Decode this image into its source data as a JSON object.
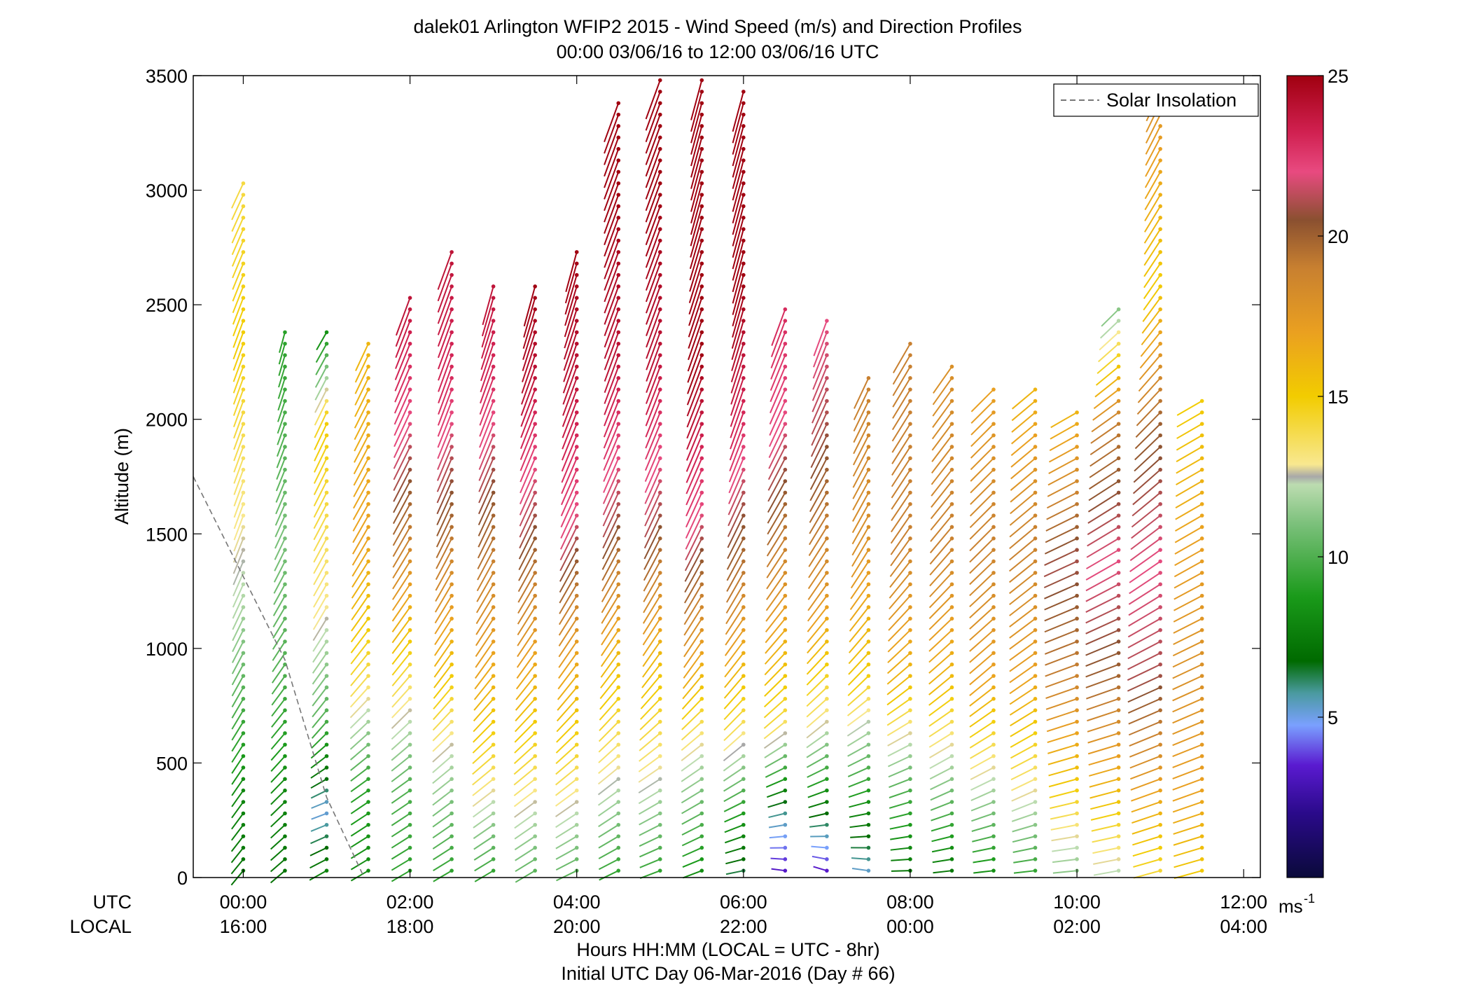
{
  "chart_data": {
    "type": "scatter",
    "title_line1": "dalek01 Arlington WFIP2 2015 - Wind Speed (m/s) and Direction Profiles",
    "title_line2": "00:00 03/06/16 to 12:00 03/06/16  UTC",
    "ylabel": "Altitude (m)",
    "ylim": [
      0,
      3500
    ],
    "yticks": [
      "0",
      "500",
      "1000",
      "1500",
      "2000",
      "2500",
      "3000",
      "3500"
    ],
    "xlim_hours": [
      -0.6,
      12.2
    ],
    "xticks_utc": [
      "00:00",
      "02:00",
      "04:00",
      "06:00",
      "08:00",
      "10:00",
      "12:00"
    ],
    "xticks_local": [
      "16:00",
      "18:00",
      "20:00",
      "22:00",
      "00:00",
      "02:00",
      "04:00"
    ],
    "xtick_hours": [
      0,
      2,
      4,
      6,
      8,
      10,
      12
    ],
    "row_label_utc": "UTC",
    "row_label_local": "LOCAL",
    "xlabel_line1": "Hours HH:MM  (LOCAL = UTC - 8hr)",
    "xlabel_line2": "Initial UTC Day 06-Mar-2016 (Day # 66)",
    "legend": {
      "entry": "Solar Insolation",
      "placement": "top-right",
      "style": "dashed gray"
    },
    "colorbar": {
      "range": [
        0,
        25
      ],
      "ticks": [
        "5",
        "10",
        "15",
        "20",
        "25"
      ],
      "tick_values": [
        5,
        10,
        15,
        20,
        25
      ],
      "unit_base": "ms",
      "unit_exp": "-1"
    },
    "solar_insolation_line": [
      [
        -0.6,
        1750
      ],
      [
        0.5,
        950
      ],
      [
        1.0,
        350
      ],
      [
        1.45,
        0
      ]
    ],
    "profiles": [
      {
        "t": 0.0,
        "top": 3050,
        "wind": [
          [
            0,
            7,
            220
          ],
          [
            400,
            8,
            215
          ],
          [
            800,
            10,
            210
          ],
          [
            1200,
            12,
            205
          ],
          [
            1600,
            13,
            200
          ],
          [
            2000,
            14,
            200
          ],
          [
            2400,
            15,
            200
          ],
          [
            3050,
            14,
            205
          ]
        ]
      },
      {
        "t": 0.5,
        "top": 2400,
        "wind": [
          [
            0,
            7,
            230
          ],
          [
            400,
            8,
            225
          ],
          [
            900,
            10,
            215
          ],
          [
            1500,
            11,
            205
          ],
          [
            2400,
            9,
            195
          ]
        ]
      },
      {
        "t": 1.0,
        "top": 2400,
        "wind": [
          [
            0,
            8,
            240
          ],
          [
            300,
            5,
            250
          ],
          [
            700,
            10,
            220
          ],
          [
            1200,
            13,
            210
          ],
          [
            2000,
            15,
            205
          ],
          [
            2400,
            8,
            210
          ]
        ]
      },
      {
        "t": 1.5,
        "top": 2330,
        "wind": [
          [
            0,
            8,
            240
          ],
          [
            400,
            9,
            235
          ],
          [
            900,
            14,
            220
          ],
          [
            1500,
            17,
            210
          ],
          [
            2330,
            16,
            205
          ]
        ]
      },
      {
        "t": 2.0,
        "top": 2550,
        "wind": [
          [
            0,
            9,
            240
          ],
          [
            400,
            10,
            235
          ],
          [
            900,
            14,
            220
          ],
          [
            1500,
            19,
            210
          ],
          [
            2000,
            22,
            205
          ],
          [
            2550,
            24,
            200
          ]
        ]
      },
      {
        "t": 2.5,
        "top": 2750,
        "wind": [
          [
            0,
            9,
            240
          ],
          [
            500,
            12,
            230
          ],
          [
            1000,
            16,
            215
          ],
          [
            1600,
            20,
            205
          ],
          [
            2200,
            23,
            200
          ],
          [
            2750,
            24,
            200
          ]
        ]
      },
      {
        "t": 3.0,
        "top": 2620,
        "wind": [
          [
            0,
            9,
            240
          ],
          [
            500,
            14,
            230
          ],
          [
            1000,
            17,
            215
          ],
          [
            1600,
            20,
            205
          ],
          [
            2200,
            23,
            200
          ],
          [
            2620,
            24,
            195
          ]
        ]
      },
      {
        "t": 3.5,
        "top": 2600,
        "wind": [
          [
            0,
            10,
            240
          ],
          [
            500,
            14,
            230
          ],
          [
            1000,
            17,
            215
          ],
          [
            1600,
            21,
            205
          ],
          [
            2200,
            24,
            200
          ],
          [
            2600,
            25,
            195
          ]
        ]
      },
      {
        "t": 4.0,
        "top": 2750,
        "wind": [
          [
            0,
            10,
            245
          ],
          [
            500,
            14,
            230
          ],
          [
            1000,
            17,
            215
          ],
          [
            1600,
            22,
            205
          ],
          [
            2200,
            24,
            200
          ],
          [
            2750,
            25,
            195
          ]
        ]
      },
      {
        "t": 4.5,
        "top": 3400,
        "wind": [
          [
            0,
            9,
            245
          ],
          [
            500,
            13,
            230
          ],
          [
            1000,
            16,
            215
          ],
          [
            1600,
            21,
            205
          ],
          [
            2300,
            24,
            200
          ],
          [
            3000,
            25,
            200
          ],
          [
            3400,
            25,
            200
          ]
        ]
      },
      {
        "t": 5.0,
        "top": 3500,
        "wind": [
          [
            0,
            9,
            250
          ],
          [
            500,
            13,
            235
          ],
          [
            1000,
            16,
            215
          ],
          [
            1600,
            21,
            205
          ],
          [
            2300,
            24,
            200
          ],
          [
            3000,
            25,
            200
          ],
          [
            3500,
            25,
            200
          ]
        ]
      },
      {
        "t": 5.5,
        "top": 3500,
        "wind": [
          [
            0,
            8,
            250
          ],
          [
            500,
            12,
            235
          ],
          [
            1000,
            17,
            215
          ],
          [
            1600,
            22,
            205
          ],
          [
            2300,
            25,
            200
          ],
          [
            3000,
            25,
            195
          ],
          [
            3500,
            25,
            195
          ]
        ]
      },
      {
        "t": 6.0,
        "top": 3470,
        "wind": [
          [
            0,
            6,
            260
          ],
          [
            300,
            9,
            245
          ],
          [
            700,
            14,
            225
          ],
          [
            1300,
            19,
            210
          ],
          [
            2000,
            23,
            200
          ],
          [
            2600,
            25,
            195
          ],
          [
            3470,
            25,
            195
          ]
        ]
      },
      {
        "t": 6.5,
        "top": 2500,
        "wind": [
          [
            0,
            3,
            280
          ],
          [
            300,
            6,
            255
          ],
          [
            700,
            14,
            230
          ],
          [
            1300,
            18,
            215
          ],
          [
            2000,
            22,
            205
          ],
          [
            2500,
            23,
            200
          ]
        ]
      },
      {
        "t": 7.0,
        "top": 2450,
        "wind": [
          [
            0,
            3,
            290
          ],
          [
            300,
            7,
            255
          ],
          [
            700,
            13,
            230
          ],
          [
            1300,
            18,
            215
          ],
          [
            2000,
            21,
            205
          ],
          [
            2450,
            22,
            200
          ]
        ]
      },
      {
        "t": 7.5,
        "top": 2200,
        "wind": [
          [
            0,
            5,
            280
          ],
          [
            400,
            9,
            250
          ],
          [
            900,
            15,
            225
          ],
          [
            1500,
            18,
            210
          ],
          [
            2200,
            19,
            205
          ]
        ]
      },
      {
        "t": 8.0,
        "top": 2330,
        "wind": [
          [
            0,
            7,
            270
          ],
          [
            400,
            10,
            250
          ],
          [
            900,
            16,
            230
          ],
          [
            1500,
            19,
            215
          ],
          [
            2330,
            19,
            210
          ]
        ]
      },
      {
        "t": 8.5,
        "top": 2230,
        "wind": [
          [
            0,
            7,
            265
          ],
          [
            400,
            11,
            245
          ],
          [
            900,
            16,
            230
          ],
          [
            1500,
            19,
            220
          ],
          [
            2230,
            18,
            215
          ]
        ]
      },
      {
        "t": 9.0,
        "top": 2150,
        "wind": [
          [
            0,
            8,
            265
          ],
          [
            400,
            12,
            245
          ],
          [
            900,
            17,
            230
          ],
          [
            1500,
            19,
            225
          ],
          [
            2150,
            17,
            225
          ]
        ]
      },
      {
        "t": 9.5,
        "top": 2150,
        "wind": [
          [
            0,
            9,
            265
          ],
          [
            400,
            13,
            245
          ],
          [
            900,
            17,
            235
          ],
          [
            1500,
            19,
            230
          ],
          [
            2150,
            16,
            230
          ]
        ]
      },
      {
        "t": 10.0,
        "top": 2050,
        "wind": [
          [
            0,
            11,
            265
          ],
          [
            400,
            15,
            255
          ],
          [
            900,
            19,
            250
          ],
          [
            1400,
            21,
            245
          ],
          [
            2050,
            16,
            240
          ]
        ]
      },
      {
        "t": 10.5,
        "top": 2500,
        "wind": [
          [
            0,
            12,
            260
          ],
          [
            400,
            16,
            255
          ],
          [
            900,
            20,
            250
          ],
          [
            1400,
            22,
            240
          ],
          [
            2000,
            19,
            235
          ],
          [
            2500,
            11,
            225
          ]
        ]
      },
      {
        "t": 11.0,
        "top": 3450,
        "wind": [
          [
            0,
            14,
            255
          ],
          [
            400,
            17,
            250
          ],
          [
            900,
            21,
            245
          ],
          [
            1400,
            22,
            235
          ],
          [
            2000,
            20,
            225
          ],
          [
            2600,
            15,
            215
          ],
          [
            3450,
            18,
            205
          ]
        ]
      },
      {
        "t": 11.5,
        "top": 2080,
        "wind": [
          [
            0,
            15,
            255
          ],
          [
            400,
            17,
            250
          ],
          [
            900,
            18,
            245
          ],
          [
            1500,
            17,
            240
          ],
          [
            2080,
            15,
            240
          ]
        ]
      }
    ]
  }
}
